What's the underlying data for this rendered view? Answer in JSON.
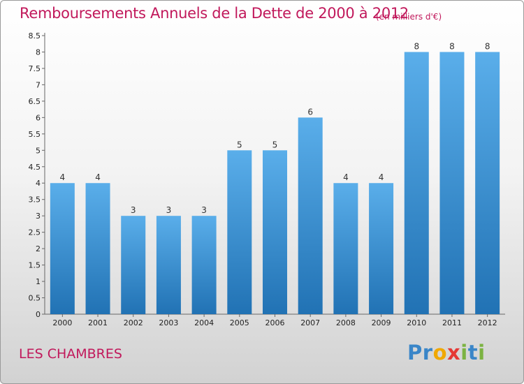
{
  "title": "Remboursements Annuels de la Dette de 2000 à 2012",
  "unit_label": "(en milliers d'€)",
  "commune": "LES CHAMBRES",
  "logo": {
    "text": "Proxiti",
    "letters": [
      "P",
      "r",
      "o",
      "x",
      "i",
      "t",
      "i"
    ],
    "colors": [
      "#3a86c8",
      "#3a86c8",
      "#f0a800",
      "#e53935",
      "#7cb342",
      "#3a86c8",
      "#7cb342"
    ]
  },
  "colors": {
    "title": "#c1185b",
    "bar_top": "#5aaeea",
    "bar_bottom": "#2172b4"
  },
  "chart_data": {
    "type": "bar",
    "categories": [
      "2000",
      "2001",
      "2002",
      "2003",
      "2004",
      "2005",
      "2006",
      "2007",
      "2008",
      "2009",
      "2010",
      "2011",
      "2012"
    ],
    "values": [
      4,
      4,
      3,
      3,
      3,
      5,
      5,
      6,
      4,
      4,
      8,
      8,
      8
    ],
    "yticks": [
      "0",
      "0.5",
      "1",
      "1.5",
      "2",
      "2.5",
      "3",
      "3.5",
      "4",
      "4.5",
      "5",
      "5.5",
      "6",
      "6.5",
      "7",
      "7.5",
      "8",
      "8.5"
    ],
    "ylim": [
      0,
      8.5
    ],
    "xlabel": "",
    "ylabel": "",
    "grid": false,
    "legend": "none"
  }
}
